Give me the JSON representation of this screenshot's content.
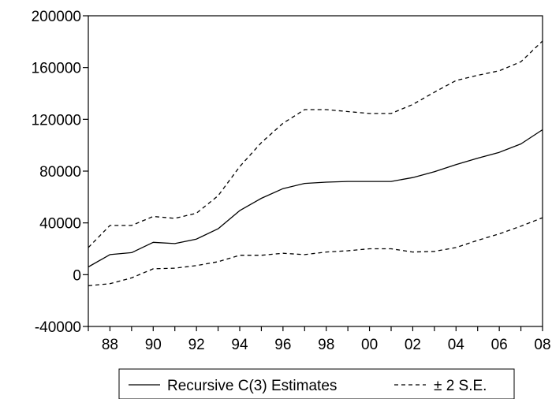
{
  "chart_data": {
    "type": "line",
    "title": "",
    "xlabel": "",
    "ylabel": "",
    "x": [
      1987,
      1988,
      1989,
      1990,
      1991,
      1992,
      1993,
      1994,
      1995,
      1996,
      1997,
      1998,
      1999,
      2000,
      2001,
      2002,
      2003,
      2004,
      2005,
      2006,
      2007,
      2008
    ],
    "xlim": [
      1987,
      2008
    ],
    "ylim": [
      -40000,
      200000
    ],
    "x_tick_values": [
      1988,
      1990,
      1992,
      1994,
      1996,
      1998,
      2000,
      2002,
      2004,
      2006,
      2008
    ],
    "x_tick_labels": [
      "88",
      "90",
      "92",
      "94",
      "96",
      "98",
      "00",
      "02",
      "04",
      "06",
      "08"
    ],
    "y_tick_values": [
      -40000,
      0,
      40000,
      80000,
      120000,
      160000,
      200000
    ],
    "y_tick_labels": [
      "-40000",
      "0",
      "40000",
      "80000",
      "120000",
      "160000",
      "200000"
    ],
    "grid": false,
    "legend_position": "bottom",
    "series": [
      {
        "name": "Recursive C(3) Estimates",
        "style": "solid",
        "color": "#000000",
        "values": [
          6000,
          15500,
          17000,
          25000,
          24000,
          27500,
          35500,
          49500,
          59000,
          66500,
          70500,
          71500,
          72000,
          72000,
          72000,
          75000,
          79500,
          85000,
          90000,
          94500,
          101000,
          112000
        ]
      },
      {
        "name": "± 2 S.E.",
        "style": "dashed",
        "color": "#000000",
        "values": [
          21000,
          38000,
          38000,
          45000,
          43500,
          47500,
          61000,
          83500,
          102000,
          117000,
          127500,
          127500,
          126000,
          124500,
          124500,
          131500,
          141000,
          150000,
          154000,
          157500,
          164500,
          180500
        ]
      },
      {
        "name": "± 2 S.E.",
        "style": "dashed",
        "color": "#000000",
        "values": [
          -8500,
          -7000,
          -2500,
          4500,
          5000,
          7000,
          10000,
          15000,
          15000,
          16500,
          15500,
          17500,
          18500,
          20000,
          20000,
          17500,
          18000,
          21000,
          26500,
          31500,
          37500,
          44000
        ]
      }
    ],
    "legend": {
      "entries": [
        {
          "label": "Recursive C(3) Estimates",
          "style": "solid"
        },
        {
          "label": "± 2 S.E.",
          "style": "dashed"
        }
      ]
    }
  }
}
